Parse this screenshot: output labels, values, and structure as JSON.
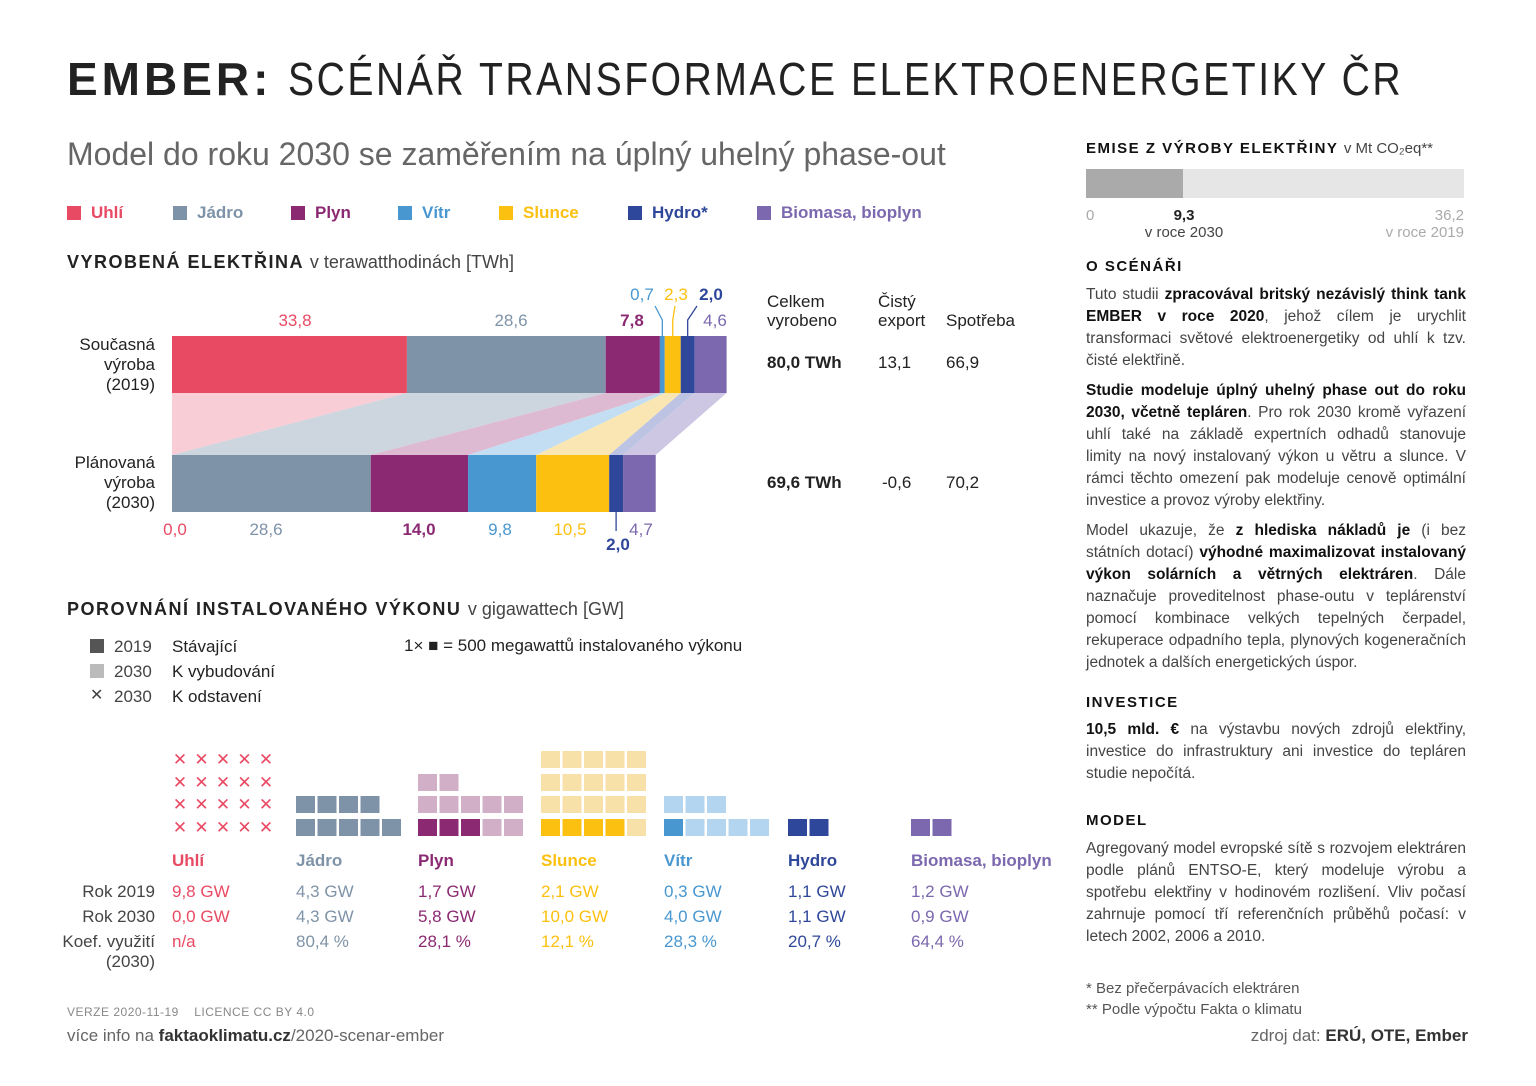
{
  "title": {
    "bold": "EMBER:",
    "rest": "SCÉNÁŘ TRANSFORMACE ELEKTROENERGETIKY ČR"
  },
  "subtitle": "Model do roku 2030 se zaměřením na úplný uhelný phase-out",
  "colors": {
    "Uhlí": "#e94a63",
    "Jádro": "#7f93a8",
    "Plyn": "#8b2a72",
    "Vítr": "#4997d0",
    "Slunce": "#fcc010",
    "Hydro": "#2f479a",
    "Biomasa": "#7b68ae"
  },
  "legend": [
    {
      "label": "Uhlí",
      "color": "#e94a63"
    },
    {
      "label": "Jádro",
      "color": "#7f93a8"
    },
    {
      "label": "Plyn",
      "color": "#8b2a72"
    },
    {
      "label": "Vítr",
      "color": "#4997d0"
    },
    {
      "label": "Slunce",
      "color": "#fcc010"
    },
    {
      "label": "Hydro*",
      "color": "#2f479a"
    },
    {
      "label": "Biomasa, bioplyn",
      "color": "#7b68ae"
    }
  ],
  "production": {
    "heading": "VYROBENÁ ELEKTŘINA",
    "unit": "v terawatthodinách [TWh]",
    "row1": "Současná\nvýroba\n(2019)",
    "row2": "Plánovaná\nvýroba\n(2030)",
    "col_total": "Celkem\nvyrobeno",
    "col_export": "Čistý\nexport",
    "col_consumption": "Spotřeba",
    "r1": {
      "total": "80,0 TWh",
      "export": "13,1",
      "consumption": "66,9"
    },
    "r2": {
      "total": "69,6 TWh",
      "export": "-0,6",
      "consumption": "70,2"
    }
  },
  "chart_data": {
    "type": "bar",
    "stacked": true,
    "orientation": "horizontal",
    "unit": "TWh",
    "categories": [
      "Současná výroba (2019)",
      "Plánovaná výroba (2030)"
    ],
    "series": [
      {
        "name": "Uhlí",
        "values": [
          33.8,
          0.0
        ],
        "labels": [
          "33,8",
          "0,0"
        ]
      },
      {
        "name": "Jádro",
        "values": [
          28.6,
          28.6
        ],
        "labels": [
          "28,6",
          "28,6"
        ]
      },
      {
        "name": "Plyn",
        "values": [
          7.8,
          14.0
        ],
        "labels": [
          "7,8",
          "14,0"
        ]
      },
      {
        "name": "Vítr",
        "values": [
          0.7,
          9.8
        ],
        "labels": [
          "0,7",
          "9,8"
        ]
      },
      {
        "name": "Slunce",
        "values": [
          2.3,
          10.5
        ],
        "labels": [
          "2,3",
          "10,5"
        ]
      },
      {
        "name": "Hydro*",
        "values": [
          2.0,
          2.0
        ],
        "labels": [
          "2,0",
          "2,0"
        ]
      },
      {
        "name": "Biomasa, bioplyn",
        "values": [
          4.6,
          4.7
        ],
        "labels": [
          "4,6",
          "4,7"
        ]
      }
    ]
  },
  "capacity": {
    "heading": "POROVNÁNÍ INSTALOVANÉHO VÝKONU",
    "unit": "v gigawattech [GW]",
    "legend": [
      {
        "year": "2019",
        "label": "Stávající",
        "mark": "dark-square"
      },
      {
        "year": "2030",
        "label": "K vybudování",
        "mark": "light-square"
      },
      {
        "year": "2030",
        "label": "K odstavení",
        "mark": "cross"
      }
    ],
    "note": "1× ■ = 500 megawattů instalovaného výkonu",
    "row_labels": [
      "Rok 2019",
      "Rok 2030",
      "Koef. využití\n(2030)"
    ],
    "sources": [
      {
        "name": "Uhlí",
        "color": "#e94a63",
        "light": "#f5b8c2",
        "existing": 0,
        "build": 0,
        "retire": 20,
        "y2019": "9,8 GW",
        "y2030": "0,0 GW",
        "factor": "n/a"
      },
      {
        "name": "Jádro",
        "color": "#7f93a8",
        "light": "#c5ced8",
        "existing": 9,
        "build": 0,
        "retire": 0,
        "y2019": "4,3 GW",
        "y2030": "4,3 GW",
        "factor": "80,4 %"
      },
      {
        "name": "Plyn",
        "color": "#8b2a72",
        "light": "#d1b0c7",
        "existing": 3,
        "build": 9,
        "retire": 0,
        "y2019": "1,7 GW",
        "y2030": "5,8 GW",
        "factor": "28,1 %"
      },
      {
        "name": "Slunce",
        "color": "#fcc010",
        "light": "#f8e1a8",
        "existing": 4,
        "build": 16,
        "retire": 0,
        "y2019": "2,1 GW",
        "y2030": "10,0 GW",
        "factor": "12,1 %"
      },
      {
        "name": "Vítr",
        "color": "#4997d0",
        "light": "#b4d5ef",
        "existing": 1,
        "build": 7,
        "retire": 0,
        "y2019": "0,3 GW",
        "y2030": "4,0 GW",
        "factor": "28,3 %"
      },
      {
        "name": "Hydro",
        "color": "#2f479a",
        "light": "#aab4d6",
        "existing": 2,
        "build": 0,
        "retire": 0,
        "y2019": "1,1 GW",
        "y2030": "1,1 GW",
        "factor": "20,7 %"
      },
      {
        "name": "Biomasa, bioplyn",
        "color": "#7b68ae",
        "light": "#c8c0de",
        "existing": 2,
        "build": 0,
        "retire": 0,
        "y2019": "1,2 GW",
        "y2030": "0,9 GW",
        "factor": "64,4 %"
      }
    ]
  },
  "emissions": {
    "heading": "EMISE Z VÝROBY ELEKTŘINY",
    "unit": "v Mt CO₂eq**",
    "value_2030": 9.3,
    "max_2019": 36.2,
    "zero": "0",
    "v2030": "9,3",
    "l2030": "v roce 2030",
    "v2019": "36,2",
    "l2019": "v roce 2019"
  },
  "about": {
    "heading": "O SCÉNÁŘI",
    "paragraphs": [
      [
        {
          "t": "Tuto studii "
        },
        {
          "t": "zpracovával britský nezávislý think tank EMBER v roce 2020",
          "b": true
        },
        {
          "t": ", jehož cílem je urychlit transformaci světové elektroenergetiky od uhlí k tzv. čisté elektřině."
        }
      ],
      [
        {
          "t": "Studie modeluje úplný uhelný phase out do roku 2030, včetně tepláren",
          "b": true
        },
        {
          "t": ". Pro rok 2030 kromě vyřazení uhlí také na základě expertních odhadů stanovuje limity na nový instalovaný výkon u větru a slunce. V rámci těchto omezení pak modeluje cenově optimální investice a provoz výroby elektřiny."
        }
      ],
      [
        {
          "t": "Model ukazuje, že "
        },
        {
          "t": "z hlediska nákladů je",
          "b": true
        },
        {
          "t": " (i bez státních dotací) "
        },
        {
          "t": "výhodné maximalizovat instalovaný výkon solárních a větrných elektráren",
          "b": true
        },
        {
          "t": ". Dále naznačuje proveditelnost phase-outu v teplárenství pomocí kombinace velkých tepelných čerpadel, rekuperace odpadního tepla, plynových kogeneračních jednotek a dalších energetických úspor."
        }
      ]
    ]
  },
  "investment": {
    "heading": "INVESTICE",
    "paragraphs": [
      [
        {
          "t": "10,5 mld. €",
          "b": true
        },
        {
          "t": " na výstavbu nových zdrojů elektřiny, investice do infrastruktury ani investice do tepláren studie nepočítá."
        }
      ]
    ]
  },
  "model": {
    "heading": "MODEL",
    "paragraphs": [
      [
        {
          "t": "Agregovaný model evropské sítě s rozvojem elektráren podle plánů ENTSO-E, který modeluje výrobu a spotřebu elektřiny v hodinovém rozlišení. Vliv počasí zahrnuje pomocí tří referenčních průběhů počasí: v letech 2002, 2006 a 2010."
        }
      ]
    ]
  },
  "notes": [
    "* Bez přečerpávacích elektráren",
    "** Podle výpočtu Fakta o klimatu"
  ],
  "footer": {
    "version": "VERZE 2020-11-19",
    "license": "LICENCE CC BY 4.0",
    "more_prefix": "více info na ",
    "more_domain": "faktaoklimatu.cz",
    "more_path": "/2020-scenar-ember",
    "source_prefix": "zdroj dat: ",
    "source": "ERÚ, OTE, Ember"
  }
}
